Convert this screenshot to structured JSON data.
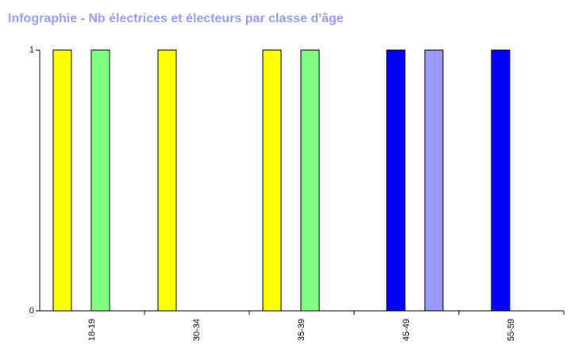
{
  "chart_data": {
    "type": "bar",
    "title": "Infographie - Nb électrices et électeurs par classe d'âge",
    "categories": [
      "18-19",
      "30-34",
      "35-39",
      "45-49",
      "55-59"
    ],
    "series": [
      {
        "color": "#ffff00",
        "values": [
          1,
          1,
          1,
          0,
          0
        ]
      },
      {
        "color": "#0000ff",
        "values": [
          0,
          0,
          0,
          1,
          1
        ]
      },
      {
        "color": "#80ff80",
        "values": [
          1,
          0,
          1,
          0,
          0
        ]
      },
      {
        "color": "#9999ff",
        "values": [
          0,
          0,
          0,
          1,
          0
        ]
      }
    ],
    "ylim": [
      0,
      1
    ],
    "yticks": [
      0,
      1
    ],
    "grid": false
  }
}
